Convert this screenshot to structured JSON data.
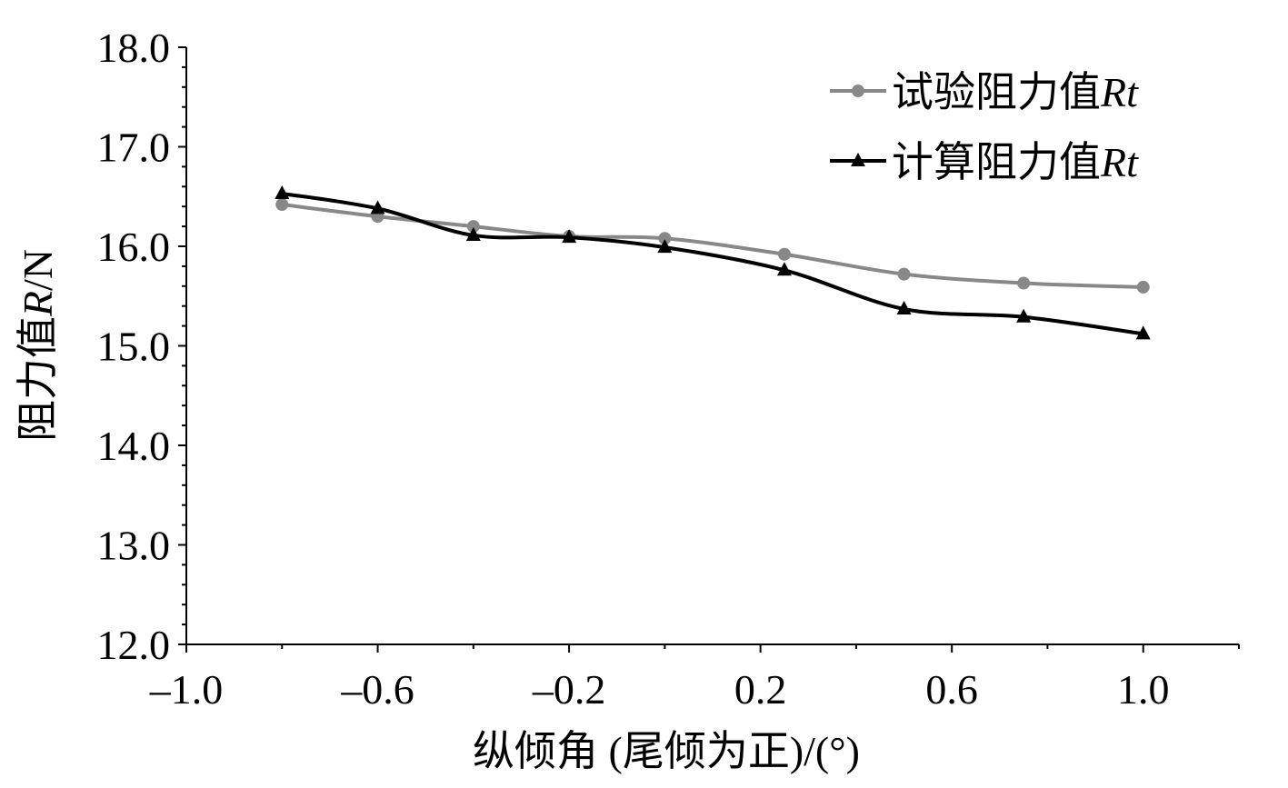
{
  "chart_data": {
    "type": "line",
    "xlabel": "纵倾角 (尾倾为正)/(°)",
    "ylabel_prefix": "阻力值",
    "ylabel_var": "R",
    "ylabel_suffix": "/N",
    "xlim": [
      -1.0,
      1.2
    ],
    "ylim": [
      12.0,
      18.0
    ],
    "x_ticks": [
      -1.0,
      -0.6,
      -0.2,
      0.2,
      0.6,
      1.0
    ],
    "x_tick_labels": [
      "–1.0",
      "–0.6",
      "–0.2",
      "0.2",
      "0.6",
      "1.0"
    ],
    "y_ticks": [
      12.0,
      13.0,
      14.0,
      15.0,
      16.0,
      17.0,
      18.0
    ],
    "y_tick_labels": [
      "12.0",
      "13.0",
      "14.0",
      "15.0",
      "16.0",
      "17.0",
      "18.0"
    ],
    "x_minor_step": 0.2,
    "y_minor_step": 0.2,
    "grid": false,
    "legend_position": "top-right",
    "series": [
      {
        "name": "试验阻力值",
        "name_var": "Rt",
        "marker": "circle",
        "color": "#888888",
        "x": [
          -0.8,
          -0.6,
          -0.4,
          -0.2,
          0.0,
          0.25,
          0.5,
          0.75,
          1.0
        ],
        "values": [
          16.42,
          16.3,
          16.2,
          16.1,
          16.08,
          15.92,
          15.72,
          15.63,
          15.59
        ]
      },
      {
        "name": "计算阻力值",
        "name_var": "Rt",
        "marker": "triangle",
        "color": "#000000",
        "x": [
          -0.8,
          -0.6,
          -0.4,
          -0.2,
          0.0,
          0.25,
          0.5,
          0.75,
          1.0
        ],
        "values": [
          16.53,
          16.38,
          16.11,
          16.09,
          15.99,
          15.76,
          15.37,
          15.29,
          15.12
        ]
      }
    ]
  }
}
